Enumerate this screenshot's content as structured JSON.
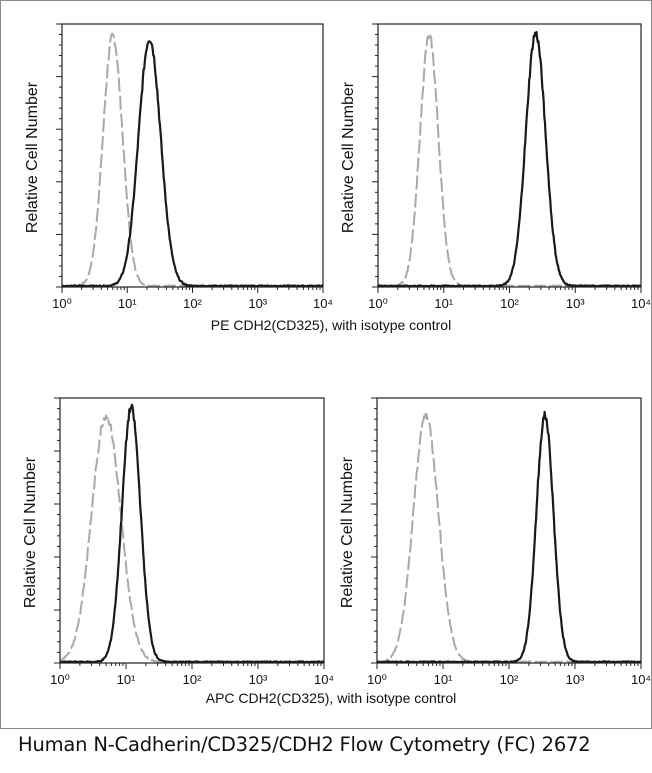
{
  "caption": "Human N-Cadherin/CD325/CDH2 Flow Cytometry (FC) 2672",
  "colors": {
    "isotype": "#a9a9a9",
    "sample": "#1a1a1a",
    "axis": "#222222"
  },
  "chart_data": [
    {
      "type": "line",
      "panel": "top-left",
      "xlabel": "PE CDH2(CD325), with isotype control",
      "ylabel": "Relative Cell Number",
      "xscale": "log",
      "xlim": [
        1,
        10000
      ],
      "ylim": [
        0,
        1
      ],
      "x_tick_labels": [
        "10⁰",
        "10¹",
        "10²",
        "10³",
        "10⁴"
      ],
      "series": [
        {
          "name": "isotype control",
          "style": "dashed",
          "peak_x": 6,
          "log_sd": 0.15,
          "peak_y": 0.95
        },
        {
          "name": "CDH2 (CD325)",
          "style": "solid",
          "peak_x": 22,
          "log_sd": 0.17,
          "peak_y": 0.94
        }
      ]
    },
    {
      "type": "line",
      "panel": "top-right",
      "xlabel": "PE CDH2(CD325), with isotype control",
      "ylabel": "Relative Cell Number",
      "xscale": "log",
      "xlim": [
        1,
        10000
      ],
      "ylim": [
        0,
        1
      ],
      "x_tick_labels": [
        "10⁰",
        "10¹",
        "10²",
        "10³",
        "10⁴"
      ],
      "series": [
        {
          "name": "isotype control",
          "style": "dashed",
          "peak_x": 6,
          "log_sd": 0.14,
          "peak_y": 0.95
        },
        {
          "name": "CDH2 (CD325)",
          "style": "solid",
          "peak_x": 250,
          "log_sd": 0.15,
          "peak_y": 0.96
        }
      ]
    },
    {
      "type": "line",
      "panel": "bottom-left",
      "xlabel": "APC CDH2(CD325), with isotype control",
      "ylabel": "Relative Cell Number",
      "xscale": "log",
      "xlim": [
        1,
        10000
      ],
      "ylim": [
        0,
        1
      ],
      "x_tick_labels": [
        "10⁰",
        "10¹",
        "10²",
        "10³",
        "10⁴"
      ],
      "series": [
        {
          "name": "isotype control",
          "style": "dashed",
          "peak_x": 5,
          "log_sd": 0.22,
          "peak_y": 0.93
        },
        {
          "name": "CDH2 (CD325)",
          "style": "solid",
          "peak_x": 12,
          "log_sd": 0.14,
          "peak_y": 0.96
        }
      ]
    },
    {
      "type": "line",
      "panel": "bottom-right",
      "xlabel": "APC CDH2(CD325), with isotype control",
      "ylabel": "Relative Cell Number",
      "xscale": "log",
      "xlim": [
        1,
        10000
      ],
      "ylim": [
        0,
        1
      ],
      "x_tick_labels": [
        "10⁰",
        "10¹",
        "10²",
        "10³",
        "10⁴"
      ],
      "series": [
        {
          "name": "isotype control",
          "style": "dashed",
          "peak_x": 5.5,
          "log_sd": 0.19,
          "peak_y": 0.93
        },
        {
          "name": "CDH2 (CD325)",
          "style": "solid",
          "peak_x": 350,
          "log_sd": 0.13,
          "peak_y": 0.93
        }
      ]
    }
  ]
}
